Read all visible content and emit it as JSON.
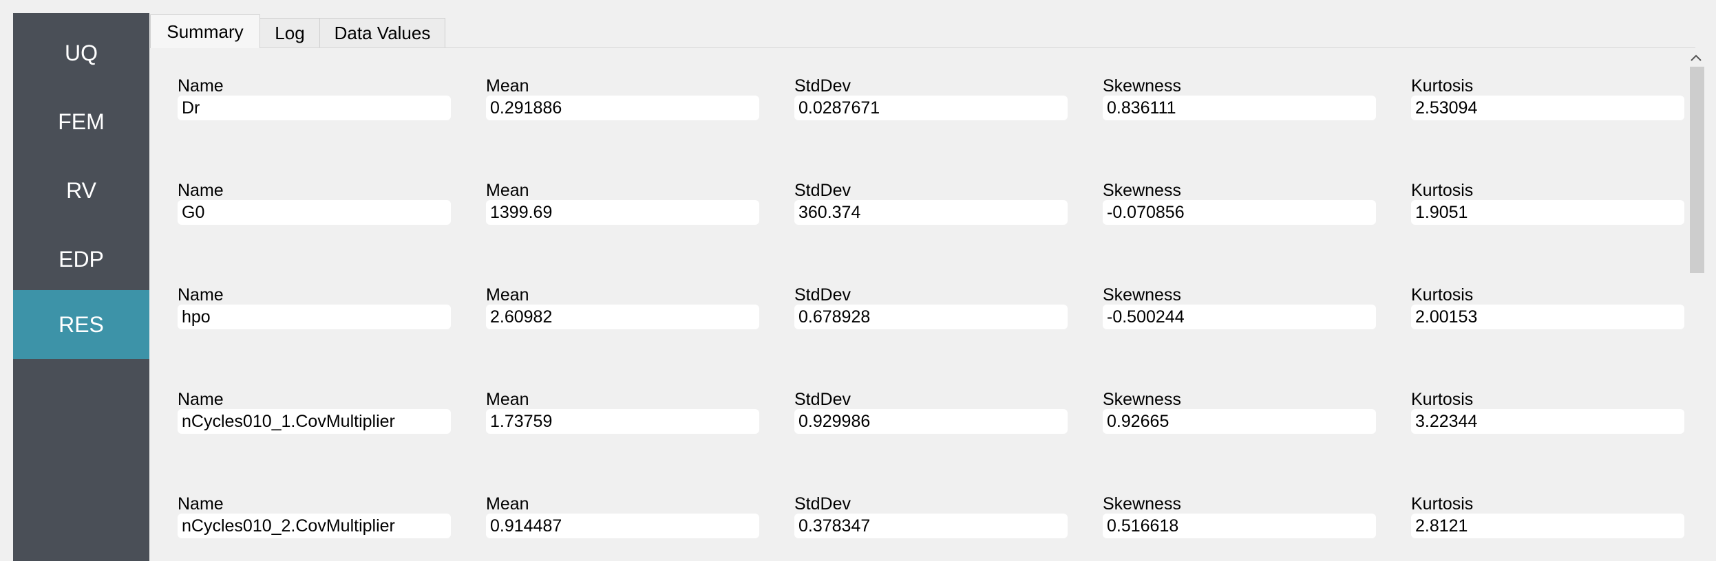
{
  "sidebar": {
    "items": [
      {
        "label": "UQ"
      },
      {
        "label": "FEM"
      },
      {
        "label": "RV"
      },
      {
        "label": "EDP"
      },
      {
        "label": "RES"
      }
    ],
    "active": "RES"
  },
  "tabs": [
    {
      "label": "Summary"
    },
    {
      "label": "Log"
    },
    {
      "label": "Data Values"
    }
  ],
  "active_tab": "Summary",
  "column_headers": [
    "Name",
    "Mean",
    "StdDev",
    "Skewness",
    "Kurtosis"
  ],
  "rows": [
    {
      "name": "Dr",
      "mean": "0.291886",
      "stddev": "0.0287671",
      "skewness": "0.836111",
      "kurtosis": "2.53094"
    },
    {
      "name": "G0",
      "mean": "1399.69",
      "stddev": "360.374",
      "skewness": "-0.070856",
      "kurtosis": "1.9051"
    },
    {
      "name": "hpo",
      "mean": "2.60982",
      "stddev": "0.678928",
      "skewness": "-0.500244",
      "kurtosis": "2.00153"
    },
    {
      "name": "nCycles010_1.CovMultiplier",
      "mean": "1.73759",
      "stddev": "0.929986",
      "skewness": "0.92665",
      "kurtosis": "3.22344"
    },
    {
      "name": "nCycles010_2.CovMultiplier",
      "mean": "0.914487",
      "stddev": "0.378347",
      "skewness": "0.516618",
      "kurtosis": "2.8121"
    }
  ],
  "colors": {
    "sidebar_bg": "#4a4f57",
    "sidebar_active": "#3d93a8",
    "background": "#f0f0f0"
  },
  "icons": {
    "scroll_up": "chevron-up-icon"
  }
}
